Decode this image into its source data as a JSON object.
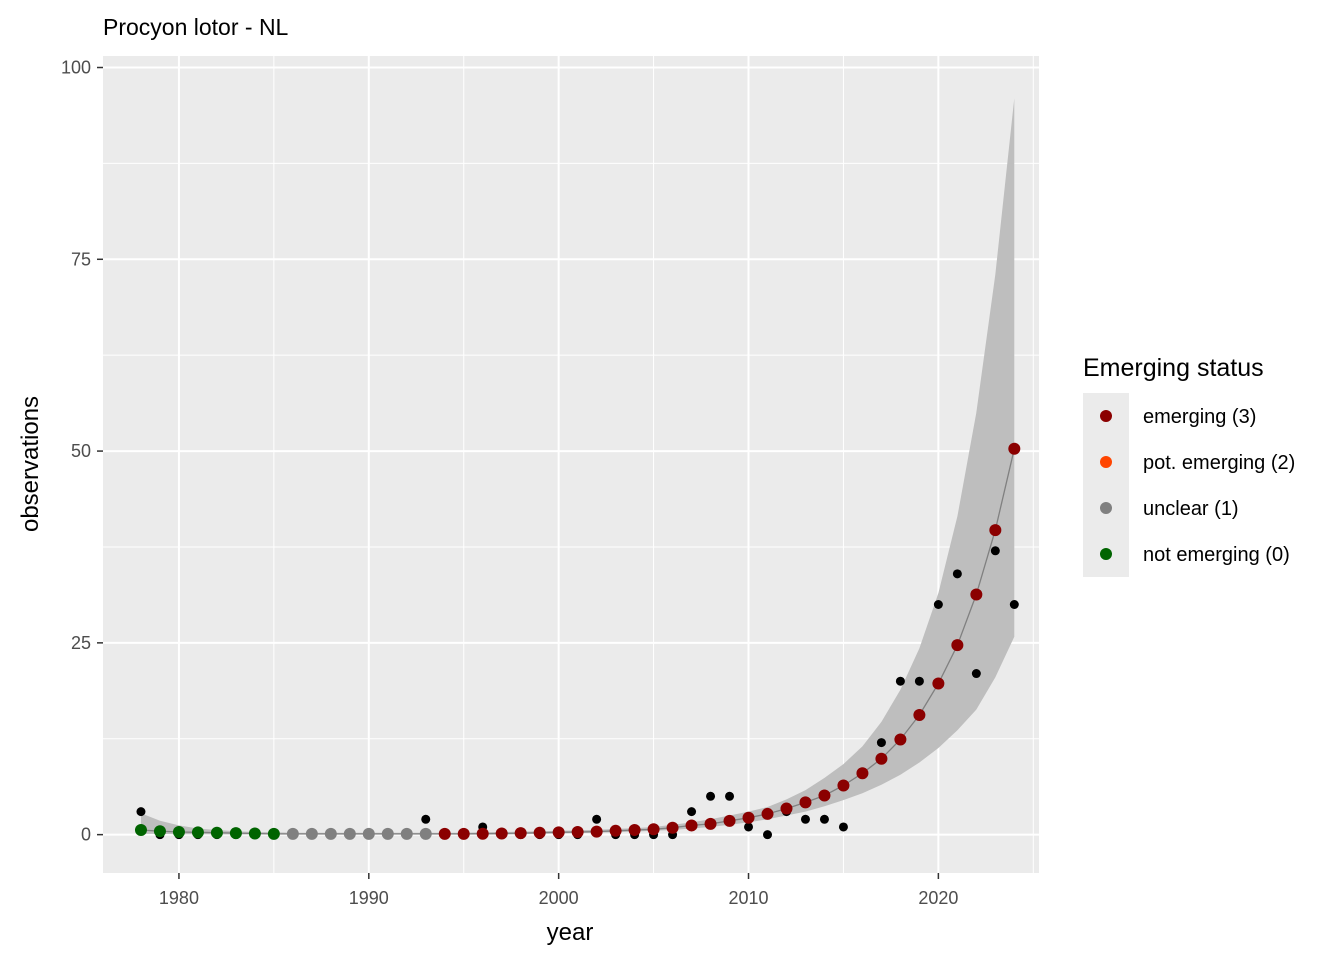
{
  "chart_data": {
    "type": "scatter",
    "title": "Procyon lotor - NL",
    "xlabel": "year",
    "ylabel": "observations",
    "xlim": [
      1976,
      2025.3
    ],
    "ylim": [
      -5,
      101.5
    ],
    "xticks": [
      1980,
      1990,
      2000,
      2010,
      2020
    ],
    "yticks": [
      0,
      25,
      50,
      75,
      100
    ],
    "grid": true,
    "legend": {
      "title": "Emerging status",
      "position": "right",
      "entries": [
        {
          "label": "emerging (3)",
          "color": "#8b0000"
        },
        {
          "label": "pot. emerging (2)",
          "color": "#ff4500"
        },
        {
          "label": "unclear (1)",
          "color": "#808080"
        },
        {
          "label": "not emerging (0)",
          "color": "#006400"
        }
      ]
    },
    "observed": {
      "color": "#000000",
      "x": [
        1978,
        1979,
        1980,
        1981,
        1982,
        1983,
        1984,
        1985,
        1986,
        1987,
        1988,
        1989,
        1990,
        1991,
        1992,
        1993,
        1994,
        1995,
        1996,
        1997,
        1998,
        1999,
        2000,
        2001,
        2002,
        2003,
        2004,
        2005,
        2006,
        2007,
        2008,
        2009,
        2010,
        2011,
        2012,
        2013,
        2014,
        2015,
        2016,
        2017,
        2018,
        2019,
        2020,
        2021,
        2022,
        2023,
        2024
      ],
      "y": [
        3,
        0,
        0,
        0,
        0,
        0,
        0,
        0,
        0,
        0,
        0,
        0,
        0,
        0,
        0,
        2,
        0,
        0,
        1,
        0,
        0,
        0,
        0,
        0,
        2,
        0,
        0,
        0,
        0,
        3,
        5,
        5,
        1,
        0,
        3,
        2,
        2,
        1,
        8,
        12,
        20,
        20,
        30,
        34,
        21,
        37,
        30
      ]
    },
    "fitted": {
      "x": [
        1978,
        1979,
        1980,
        1981,
        1982,
        1983,
        1984,
        1985,
        1986,
        1987,
        1988,
        1989,
        1990,
        1991,
        1992,
        1993,
        1994,
        1995,
        1996,
        1997,
        1998,
        1999,
        2000,
        2001,
        2002,
        2003,
        2004,
        2005,
        2006,
        2007,
        2008,
        2009,
        2010,
        2011,
        2012,
        2013,
        2014,
        2015,
        2016,
        2017,
        2018,
        2019,
        2020,
        2021,
        2022,
        2023,
        2024
      ],
      "y": [
        0.6,
        0.45,
        0.35,
        0.3,
        0.25,
        0.2,
        0.15,
        0.1,
        0.1,
        0.1,
        0.1,
        0.1,
        0.1,
        0.1,
        0.1,
        0.1,
        0.1,
        0.1,
        0.12,
        0.15,
        0.2,
        0.25,
        0.3,
        0.35,
        0.4,
        0.5,
        0.6,
        0.7,
        0.9,
        1.2,
        1.4,
        1.8,
        2.2,
        2.7,
        3.4,
        4.2,
        5.1,
        6.4,
        8.0,
        9.9,
        12.4,
        15.6,
        19.7,
        24.7,
        31.3,
        39.7,
        50.3
      ],
      "lower": [
        0.1,
        0.1,
        0.05,
        0.05,
        0.03,
        0.02,
        0.02,
        0.0,
        0.0,
        0.0,
        0.0,
        0.0,
        0.0,
        0.0,
        0.0,
        0.0,
        0.0,
        0.0,
        0.0,
        0.0,
        0.05,
        0.1,
        0.15,
        0.2,
        0.25,
        0.3,
        0.4,
        0.5,
        0.6,
        0.8,
        1.0,
        1.3,
        1.6,
        2.0,
        2.5,
        3.0,
        3.7,
        4.5,
        5.4,
        6.5,
        7.8,
        9.4,
        11.3,
        13.6,
        16.3,
        20.5,
        25.8
      ],
      "upper": [
        2.8,
        1.8,
        1.2,
        0.8,
        0.6,
        0.45,
        0.35,
        0.3,
        0.25,
        0.25,
        0.25,
        0.25,
        0.25,
        0.25,
        0.25,
        0.25,
        0.25,
        0.25,
        0.3,
        0.35,
        0.4,
        0.45,
        0.5,
        0.55,
        0.65,
        0.75,
        0.85,
        1.0,
        1.3,
        1.6,
        2.0,
        2.5,
        3.0,
        3.6,
        4.6,
        5.8,
        7.4,
        9.2,
        11.5,
        14.7,
        18.9,
        24.3,
        31.5,
        41.5,
        55.0,
        73.0,
        96.0
      ],
      "status": [
        "not emerging (0)",
        "not emerging (0)",
        "not emerging (0)",
        "not emerging (0)",
        "not emerging (0)",
        "not emerging (0)",
        "not emerging (0)",
        "not emerging (0)",
        "unclear (1)",
        "unclear (1)",
        "unclear (1)",
        "unclear (1)",
        "unclear (1)",
        "unclear (1)",
        "unclear (1)",
        "unclear (1)",
        "emerging (3)",
        "emerging (3)",
        "emerging (3)",
        "emerging (3)",
        "emerging (3)",
        "emerging (3)",
        "emerging (3)",
        "emerging (3)",
        "emerging (3)",
        "emerging (3)",
        "emerging (3)",
        "emerging (3)",
        "emerging (3)",
        "emerging (3)",
        "emerging (3)",
        "emerging (3)",
        "emerging (3)",
        "emerging (3)",
        "emerging (3)",
        "emerging (3)",
        "emerging (3)",
        "emerging (3)",
        "emerging (3)",
        "emerging (3)",
        "emerging (3)",
        "emerging (3)",
        "emerging (3)",
        "emerging (3)",
        "emerging (3)",
        "emerging (3)",
        "emerging (3)"
      ]
    },
    "colors": {
      "panel_bg": "#ebebeb",
      "grid": "#ffffff",
      "ribbon": "#bebebe",
      "line": "#808080"
    }
  }
}
